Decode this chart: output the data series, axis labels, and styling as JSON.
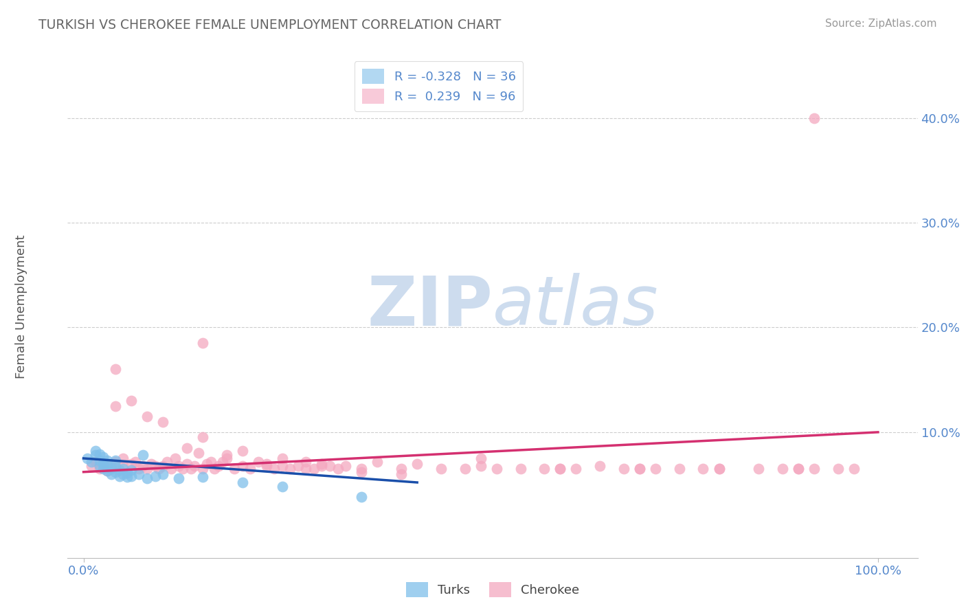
{
  "title": "TURKISH VS CHEROKEE FEMALE UNEMPLOYMENT CORRELATION CHART",
  "source": "Source: ZipAtlas.com",
  "ylabel": "Female Unemployment",
  "ytick_labels": [
    "10.0%",
    "20.0%",
    "30.0%",
    "40.0%"
  ],
  "ytick_values": [
    0.1,
    0.2,
    0.3,
    0.4
  ],
  "xtick_labels": [
    "0.0%",
    "100.0%"
  ],
  "xtick_values": [
    0.0,
    1.0
  ],
  "xlim": [
    -0.02,
    1.05
  ],
  "ylim": [
    -0.02,
    0.46
  ],
  "legend_entry1": "R = -0.328   N = 36",
  "legend_entry2": "R =  0.239   N = 96",
  "legend_labels": [
    "Turks",
    "Cherokee"
  ],
  "turks_color": "#7fbfea",
  "cherokee_color": "#f4a8c0",
  "trend_turks_color": "#1a4faa",
  "trend_cherokee_color": "#d43070",
  "trend_turks_dashed_color": "#aaccee",
  "watermark_zip": "ZIP",
  "watermark_atlas": "atlas",
  "watermark_color": "#cddcee",
  "background_color": "#ffffff",
  "tick_color": "#5588cc",
  "title_color": "#666666",
  "ylabel_color": "#555555",
  "source_color": "#999999",
  "grid_color": "#cccccc",
  "turks_x": [
    0.005,
    0.01,
    0.015,
    0.015,
    0.02,
    0.02,
    0.02,
    0.025,
    0.025,
    0.025,
    0.03,
    0.03,
    0.03,
    0.035,
    0.035,
    0.04,
    0.04,
    0.04,
    0.045,
    0.045,
    0.05,
    0.05,
    0.055,
    0.055,
    0.06,
    0.06,
    0.07,
    0.075,
    0.08,
    0.09,
    0.1,
    0.12,
    0.15,
    0.2,
    0.25,
    0.35
  ],
  "turks_y": [
    0.075,
    0.072,
    0.078,
    0.082,
    0.068,
    0.073,
    0.079,
    0.065,
    0.07,
    0.076,
    0.063,
    0.068,
    0.073,
    0.06,
    0.065,
    0.062,
    0.067,
    0.073,
    0.058,
    0.064,
    0.06,
    0.065,
    0.057,
    0.061,
    0.058,
    0.064,
    0.06,
    0.078,
    0.056,
    0.058,
    0.06,
    0.056,
    0.057,
    0.052,
    0.048,
    0.038
  ],
  "cherokee_x": [
    0.01,
    0.015,
    0.02,
    0.025,
    0.03,
    0.035,
    0.04,
    0.04,
    0.05,
    0.05,
    0.06,
    0.065,
    0.07,
    0.075,
    0.08,
    0.085,
    0.09,
    0.095,
    0.1,
    0.105,
    0.11,
    0.115,
    0.12,
    0.125,
    0.13,
    0.135,
    0.14,
    0.145,
    0.15,
    0.155,
    0.16,
    0.165,
    0.17,
    0.175,
    0.18,
    0.19,
    0.2,
    0.21,
    0.22,
    0.23,
    0.24,
    0.25,
    0.26,
    0.27,
    0.28,
    0.29,
    0.3,
    0.31,
    0.32,
    0.33,
    0.35,
    0.37,
    0.4,
    0.42,
    0.45,
    0.48,
    0.5,
    0.52,
    0.55,
    0.58,
    0.6,
    0.62,
    0.65,
    0.68,
    0.7,
    0.72,
    0.75,
    0.78,
    0.8,
    0.85,
    0.88,
    0.9,
    0.92,
    0.95,
    0.97,
    0.04,
    0.08,
    0.13,
    0.18,
    0.23,
    0.28,
    0.35,
    0.4,
    0.5,
    0.6,
    0.7,
    0.8,
    0.9,
    0.06,
    0.1,
    0.15,
    0.2,
    0.25,
    0.3,
    0.92,
    0.15
  ],
  "cherokee_y": [
    0.068,
    0.072,
    0.065,
    0.07,
    0.063,
    0.068,
    0.16,
    0.072,
    0.075,
    0.068,
    0.07,
    0.072,
    0.065,
    0.068,
    0.065,
    0.07,
    0.068,
    0.065,
    0.068,
    0.072,
    0.065,
    0.075,
    0.068,
    0.065,
    0.07,
    0.065,
    0.068,
    0.08,
    0.065,
    0.07,
    0.072,
    0.065,
    0.068,
    0.072,
    0.075,
    0.065,
    0.068,
    0.065,
    0.072,
    0.07,
    0.065,
    0.068,
    0.065,
    0.068,
    0.072,
    0.065,
    0.07,
    0.068,
    0.065,
    0.068,
    0.065,
    0.072,
    0.065,
    0.07,
    0.065,
    0.065,
    0.068,
    0.065,
    0.065,
    0.065,
    0.065,
    0.065,
    0.068,
    0.065,
    0.065,
    0.065,
    0.065,
    0.065,
    0.065,
    0.065,
    0.065,
    0.065,
    0.065,
    0.065,
    0.065,
    0.125,
    0.115,
    0.085,
    0.078,
    0.068,
    0.065,
    0.062,
    0.06,
    0.075,
    0.065,
    0.065,
    0.065,
    0.065,
    0.13,
    0.11,
    0.095,
    0.082,
    0.075,
    0.068,
    0.4,
    0.185
  ],
  "turks_trend_x0": 0.0,
  "turks_trend_x1": 0.42,
  "turks_trend_y0": 0.075,
  "turks_trend_y1": 0.052,
  "cherokee_trend_x0": 0.0,
  "cherokee_trend_x1": 1.0,
  "cherokee_trend_y0": 0.062,
  "cherokee_trend_y1": 0.1
}
